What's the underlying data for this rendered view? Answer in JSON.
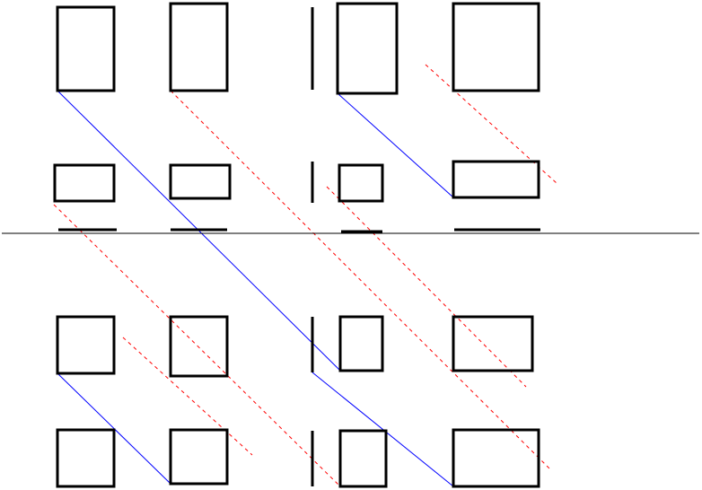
{
  "colors": {
    "background": "#ffffff",
    "shape_stroke": "#000000",
    "solid_diagonal": "#0000ff",
    "dashed_diagonal": "#ff0000",
    "divider": "#000000"
  },
  "diagram": {
    "has_text": false,
    "divider": "horizontal-line",
    "regions": [
      "top",
      "bottom"
    ],
    "row_count": 4,
    "column_count": 5,
    "connector_styles": {
      "solid": "solid-blue",
      "dashed": "dashed-red"
    }
  }
}
